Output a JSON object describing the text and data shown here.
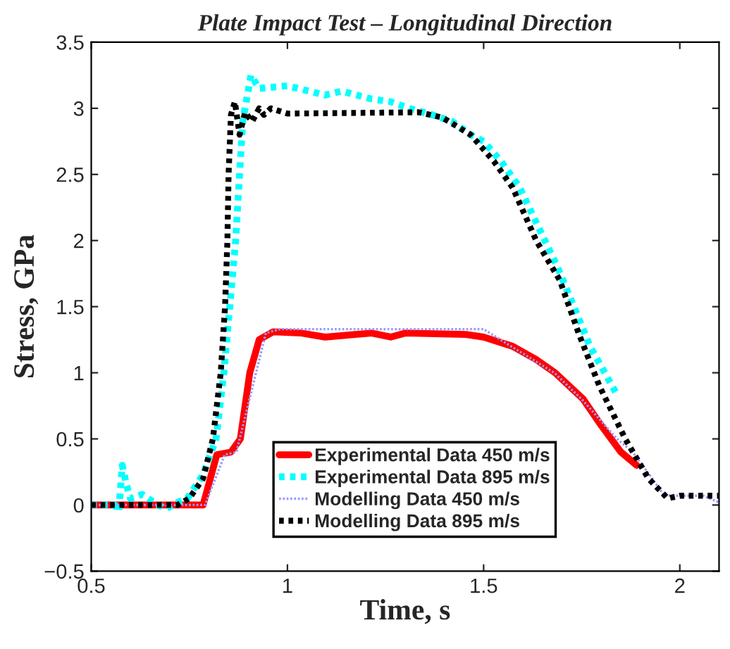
{
  "chart_data": {
    "type": "line",
    "title": "Plate Impact Test – Longitudinal Direction",
    "xlabel": "Time, s",
    "ylabel": "Stress, GPa",
    "xlim": [
      0.5,
      2.1
    ],
    "xticks": [
      0.5,
      1,
      1.5,
      2
    ],
    "ylim": [
      -0.5,
      3.5
    ],
    "yticks": [
      {
        "value": -0.5,
        "label": "−0.5"
      },
      0,
      0.5,
      1,
      1.5,
      2,
      2.5,
      3,
      3.5
    ],
    "grid": false,
    "legend": "bottom",
    "series": [
      {
        "name": "Experimental Data 450 m/s",
        "color": "#ff0000",
        "line_style": "solid",
        "x": [
          0.5,
          0.6,
          0.7,
          0.785,
          0.82,
          0.856,
          0.88,
          0.904,
          0.928,
          0.964,
          1.036,
          1.096,
          1.215,
          1.263,
          1.3,
          1.455,
          1.5,
          1.574,
          1.634,
          1.682,
          1.754,
          1.8,
          1.85,
          1.89
        ],
        "values": [
          0,
          0,
          0,
          0,
          0.38,
          0.4,
          0.5,
          1.0,
          1.25,
          1.31,
          1.3,
          1.27,
          1.3,
          1.27,
          1.3,
          1.29,
          1.27,
          1.2,
          1.1,
          1.0,
          0.8,
          0.6,
          0.4,
          0.3
        ]
      },
      {
        "name": "Experimental Data 895 m/s",
        "color": "#00ffff",
        "line_style": "dotted",
        "x": [
          0.5,
          0.56,
          0.57,
          0.579,
          0.59,
          0.6,
          0.63,
          0.67,
          0.69,
          0.72,
          0.745,
          0.785,
          0.818,
          0.838,
          0.853,
          0.868,
          0.878,
          0.886,
          0.892,
          0.907,
          0.928,
          1.0,
          1.096,
          1.138,
          1.215,
          1.263,
          1.31,
          1.37,
          1.42,
          1.467,
          1.5,
          1.544,
          1.592,
          1.64,
          1.688,
          1.73,
          1.771,
          1.837
        ],
        "values": [
          0,
          0,
          -0.05,
          0.3,
          0.15,
          0.05,
          0.08,
          0,
          -0.03,
          0.02,
          0.05,
          0.23,
          0.5,
          1.0,
          1.5,
          2.0,
          2.5,
          2.9,
          3.0,
          3.25,
          3.15,
          3.17,
          3.1,
          3.13,
          3.07,
          3.05,
          3.0,
          2.95,
          2.9,
          2.8,
          2.75,
          2.6,
          2.4,
          2.1,
          1.8,
          1.5,
          1.2,
          0.85
        ]
      },
      {
        "name": "Modelling Data 450 m/s",
        "color": "#9999ff",
        "line_style": "dotted",
        "x": [
          0.5,
          0.7,
          0.79,
          0.84,
          0.87,
          0.92,
          0.945,
          0.98,
          1.5,
          1.57,
          1.68,
          1.75,
          1.84,
          1.88,
          1.93,
          1.96,
          2.06,
          2.1
        ],
        "values": [
          0,
          0,
          0,
          0.38,
          0.4,
          1.0,
          1.3,
          1.33,
          1.33,
          1.2,
          1.0,
          0.8,
          0.5,
          0.4,
          0.2,
          0.07,
          0.07,
          0.02
        ]
      },
      {
        "name": "Modelling Data 895 m/s",
        "color": "#000000",
        "line_style": "dotted",
        "x": [
          0.5,
          0.72,
          0.75,
          0.785,
          0.81,
          0.83,
          0.841,
          0.847,
          0.85,
          0.856,
          0.866,
          0.878,
          0.892,
          0.91,
          0.928,
          0.94,
          0.958,
          1.0,
          1.335,
          1.395,
          1.467,
          1.526,
          1.574,
          1.634,
          1.694,
          1.742,
          1.795,
          1.861,
          1.92,
          1.969,
          2.0,
          2.1
        ],
        "values": [
          0,
          0,
          0.05,
          0.2,
          0.5,
          1.0,
          1.5,
          2.0,
          2.5,
          2.95,
          3.05,
          2.8,
          2.97,
          2.9,
          3.0,
          2.95,
          3.0,
          2.96,
          2.97,
          2.93,
          2.8,
          2.6,
          2.4,
          2.0,
          1.7,
          1.3,
          0.9,
          0.5,
          0.2,
          0.05,
          0.07,
          0.07
        ]
      }
    ]
  }
}
